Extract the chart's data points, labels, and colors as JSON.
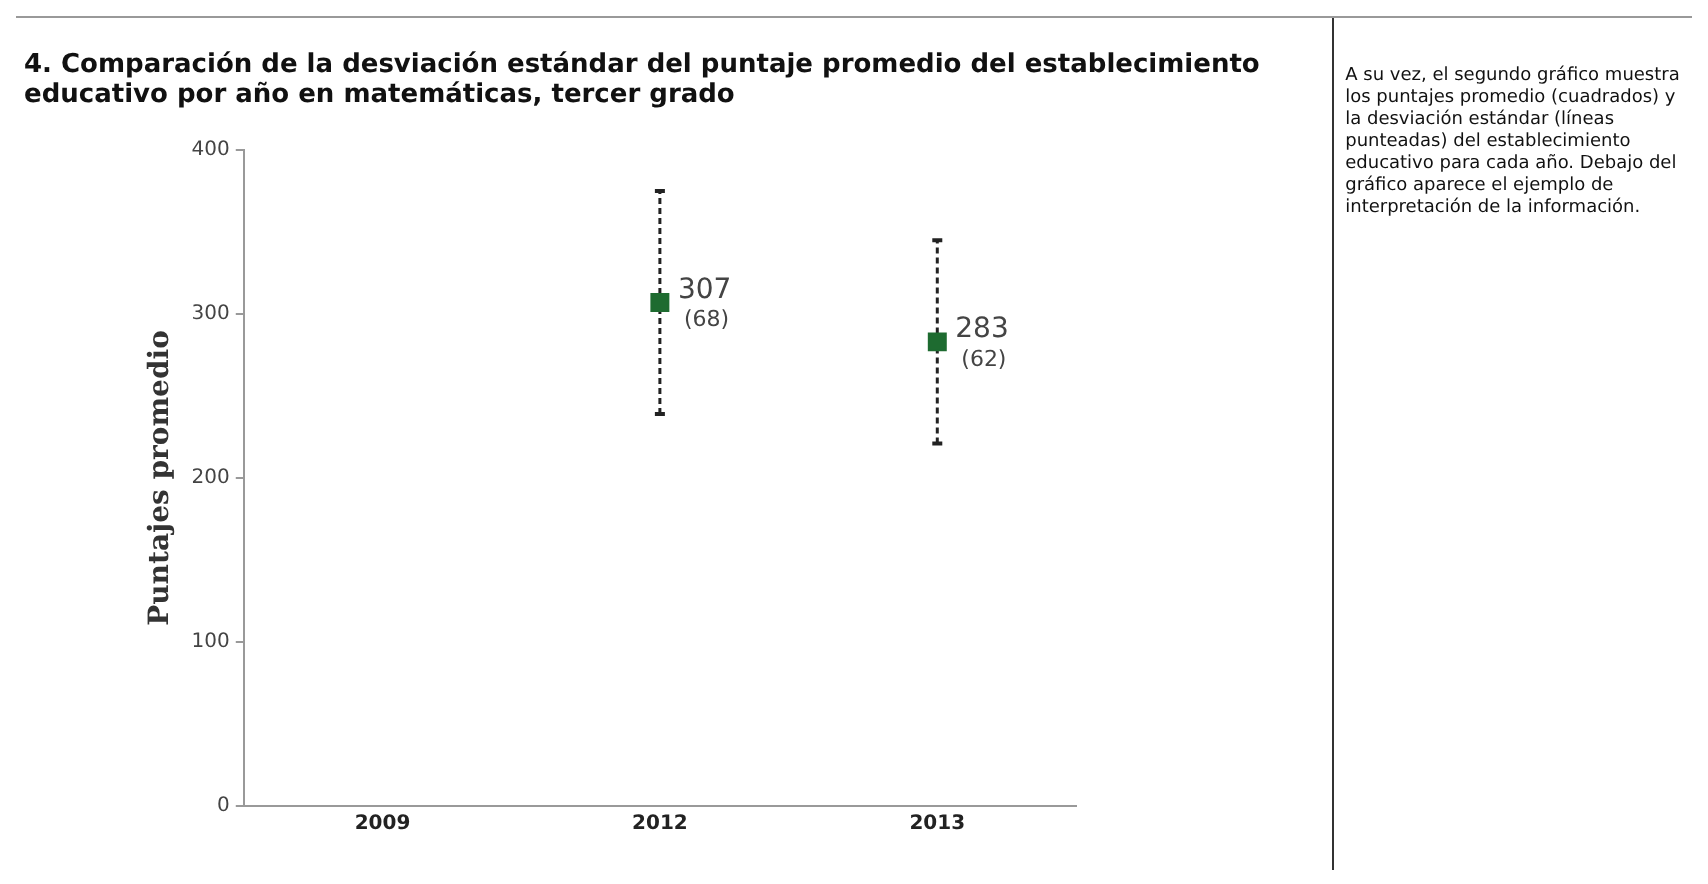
{
  "chart_data": {
    "type": "scatter",
    "title": "4. Comparación de la desviación estándar del puntaje promedio del establecimiento educativo por año en matemáticas, tercer grado",
    "ylabel": "Puntajes promedio",
    "categories": [
      "2009",
      "2012",
      "2013"
    ],
    "series": [
      {
        "color": "#1e6b30",
        "values": [
          null,
          307,
          283
        ],
        "errors": [
          null,
          68,
          62
        ],
        "value_labels": [
          null,
          "307\n(68)",
          "283\n(62)"
        ]
      }
    ],
    "ylim": [
      0,
      400
    ],
    "yticks": [
      0,
      100,
      200,
      300,
      400
    ],
    "grid": false,
    "legend": false,
    "marker": "square",
    "line_style": "dashed",
    "annotations": [
      "A su vez, el segundo gráfico muestra los puntajes promedio (cuadrados) y la desviación estándar (líneas punteadas) del establecimiento educativo para cada año. Debajo del gráfico aparece el ejemplo de interpretación de la información."
    ]
  }
}
